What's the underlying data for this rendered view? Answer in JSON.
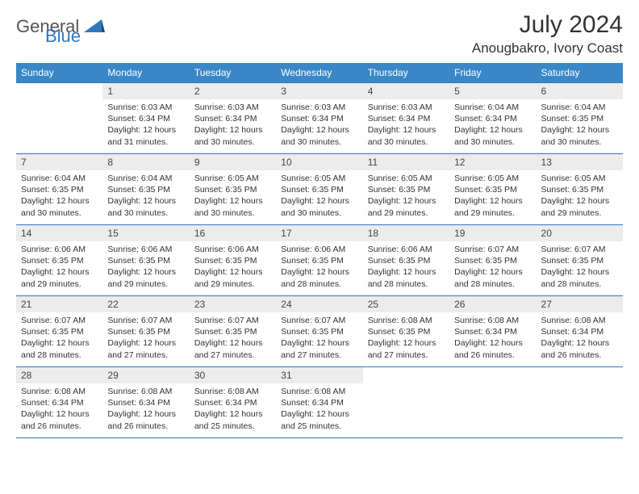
{
  "brand": {
    "part1": "General",
    "part2": "Blue"
  },
  "title": "July 2024",
  "location": "Anougbakro, Ivory Coast",
  "colors": {
    "header_bg": "#3a87c8",
    "border": "#2f78bd",
    "daynum_bg": "#ececec",
    "text": "#333333",
    "brand_accent": "#2f78bd",
    "brand_gray": "#555555",
    "background": "#ffffff"
  },
  "fonts": {
    "month_title_size": 30,
    "location_size": 17,
    "weekday_size": 12,
    "daynum_size": 12,
    "body_size": 10.5
  },
  "weekdays": [
    "Sunday",
    "Monday",
    "Tuesday",
    "Wednesday",
    "Thursday",
    "Friday",
    "Saturday"
  ],
  "weeks": [
    [
      null,
      {
        "n": "1",
        "sr": "6:03 AM",
        "ss": "6:34 PM",
        "dl": "12 hours and 31 minutes."
      },
      {
        "n": "2",
        "sr": "6:03 AM",
        "ss": "6:34 PM",
        "dl": "12 hours and 30 minutes."
      },
      {
        "n": "3",
        "sr": "6:03 AM",
        "ss": "6:34 PM",
        "dl": "12 hours and 30 minutes."
      },
      {
        "n": "4",
        "sr": "6:03 AM",
        "ss": "6:34 PM",
        "dl": "12 hours and 30 minutes."
      },
      {
        "n": "5",
        "sr": "6:04 AM",
        "ss": "6:34 PM",
        "dl": "12 hours and 30 minutes."
      },
      {
        "n": "6",
        "sr": "6:04 AM",
        "ss": "6:35 PM",
        "dl": "12 hours and 30 minutes."
      }
    ],
    [
      {
        "n": "7",
        "sr": "6:04 AM",
        "ss": "6:35 PM",
        "dl": "12 hours and 30 minutes."
      },
      {
        "n": "8",
        "sr": "6:04 AM",
        "ss": "6:35 PM",
        "dl": "12 hours and 30 minutes."
      },
      {
        "n": "9",
        "sr": "6:05 AM",
        "ss": "6:35 PM",
        "dl": "12 hours and 30 minutes."
      },
      {
        "n": "10",
        "sr": "6:05 AM",
        "ss": "6:35 PM",
        "dl": "12 hours and 30 minutes."
      },
      {
        "n": "11",
        "sr": "6:05 AM",
        "ss": "6:35 PM",
        "dl": "12 hours and 29 minutes."
      },
      {
        "n": "12",
        "sr": "6:05 AM",
        "ss": "6:35 PM",
        "dl": "12 hours and 29 minutes."
      },
      {
        "n": "13",
        "sr": "6:05 AM",
        "ss": "6:35 PM",
        "dl": "12 hours and 29 minutes."
      }
    ],
    [
      {
        "n": "14",
        "sr": "6:06 AM",
        "ss": "6:35 PM",
        "dl": "12 hours and 29 minutes."
      },
      {
        "n": "15",
        "sr": "6:06 AM",
        "ss": "6:35 PM",
        "dl": "12 hours and 29 minutes."
      },
      {
        "n": "16",
        "sr": "6:06 AM",
        "ss": "6:35 PM",
        "dl": "12 hours and 29 minutes."
      },
      {
        "n": "17",
        "sr": "6:06 AM",
        "ss": "6:35 PM",
        "dl": "12 hours and 28 minutes."
      },
      {
        "n": "18",
        "sr": "6:06 AM",
        "ss": "6:35 PM",
        "dl": "12 hours and 28 minutes."
      },
      {
        "n": "19",
        "sr": "6:07 AM",
        "ss": "6:35 PM",
        "dl": "12 hours and 28 minutes."
      },
      {
        "n": "20",
        "sr": "6:07 AM",
        "ss": "6:35 PM",
        "dl": "12 hours and 28 minutes."
      }
    ],
    [
      {
        "n": "21",
        "sr": "6:07 AM",
        "ss": "6:35 PM",
        "dl": "12 hours and 28 minutes."
      },
      {
        "n": "22",
        "sr": "6:07 AM",
        "ss": "6:35 PM",
        "dl": "12 hours and 27 minutes."
      },
      {
        "n": "23",
        "sr": "6:07 AM",
        "ss": "6:35 PM",
        "dl": "12 hours and 27 minutes."
      },
      {
        "n": "24",
        "sr": "6:07 AM",
        "ss": "6:35 PM",
        "dl": "12 hours and 27 minutes."
      },
      {
        "n": "25",
        "sr": "6:08 AM",
        "ss": "6:35 PM",
        "dl": "12 hours and 27 minutes."
      },
      {
        "n": "26",
        "sr": "6:08 AM",
        "ss": "6:34 PM",
        "dl": "12 hours and 26 minutes."
      },
      {
        "n": "27",
        "sr": "6:08 AM",
        "ss": "6:34 PM",
        "dl": "12 hours and 26 minutes."
      }
    ],
    [
      {
        "n": "28",
        "sr": "6:08 AM",
        "ss": "6:34 PM",
        "dl": "12 hours and 26 minutes."
      },
      {
        "n": "29",
        "sr": "6:08 AM",
        "ss": "6:34 PM",
        "dl": "12 hours and 26 minutes."
      },
      {
        "n": "30",
        "sr": "6:08 AM",
        "ss": "6:34 PM",
        "dl": "12 hours and 25 minutes."
      },
      {
        "n": "31",
        "sr": "6:08 AM",
        "ss": "6:34 PM",
        "dl": "12 hours and 25 minutes."
      },
      null,
      null,
      null
    ]
  ],
  "labels": {
    "sunrise": "Sunrise:",
    "sunset": "Sunset:",
    "daylight": "Daylight:"
  }
}
